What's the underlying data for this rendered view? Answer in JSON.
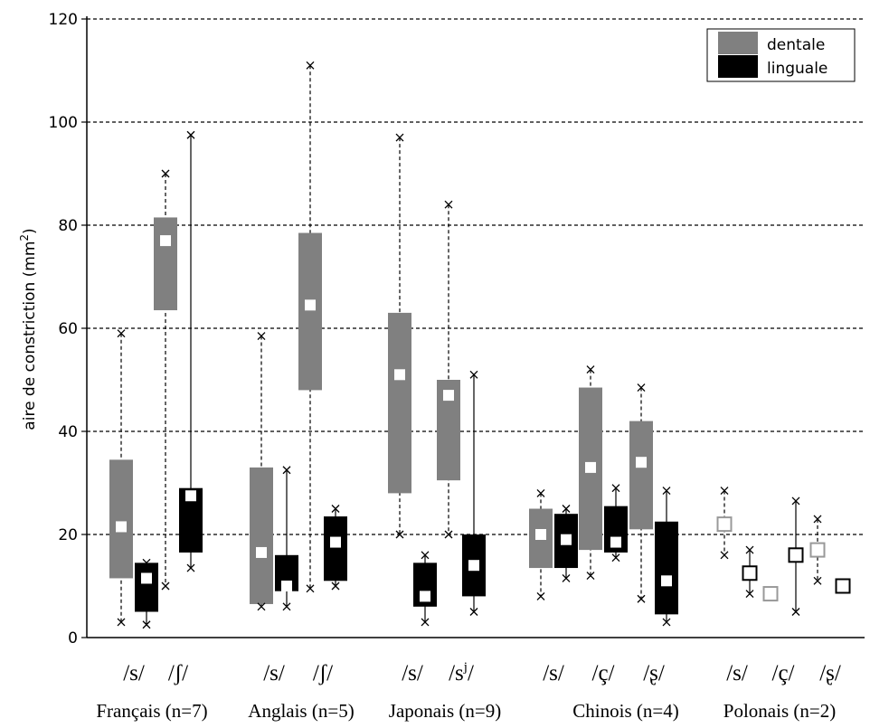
{
  "chart_data": {
    "type": "boxplot",
    "ylabel": "aire de constriction (mm",
    "ylabel_sup": "2",
    "ylabel_close": ")",
    "ylim": [
      0,
      120
    ],
    "yticks": [
      "0",
      "20",
      "40",
      "60",
      "80",
      "100",
      "120"
    ],
    "grid": "horizontal dashed",
    "legend_position": "top-right",
    "legend": [
      {
        "label": "dentale",
        "color": "#808080"
      },
      {
        "label": "linguale",
        "color": "#000000"
      }
    ],
    "groups": [
      {
        "label": "Français (n=7)",
        "phonemes": [
          {
            "label": "/s/",
            "dentale": {
              "min": 3,
              "q1": 11.5,
              "mean": 21.5,
              "q3": 34.5,
              "max": 59
            },
            "linguale": {
              "min": 2.5,
              "q1": 5,
              "mean": 11.5,
              "q3": 14.5,
              "max": 14.5
            }
          },
          {
            "label": "/ʃ/",
            "dentale": {
              "min": 10,
              "q1": 63.5,
              "mean": 77,
              "q3": 81.5,
              "max": 90
            },
            "linguale": {
              "min": 13.5,
              "q1": 16.5,
              "mean": 27.5,
              "q3": 29,
              "max": 97.5
            }
          }
        ]
      },
      {
        "label": "Anglais (n=5)",
        "phonemes": [
          {
            "label": "/s/",
            "dentale": {
              "min": 6,
              "q1": 6.5,
              "mean": 16.5,
              "q3": 33,
              "max": 58.5
            },
            "linguale": {
              "min": 6,
              "q1": 9,
              "mean": 10,
              "q3": 16,
              "max": 32.5
            }
          },
          {
            "label": "/ʃ/",
            "dentale": {
              "min": 9.5,
              "q1": 48,
              "mean": 64.5,
              "q3": 78.5,
              "max": 111
            },
            "linguale": {
              "min": 10,
              "q1": 11,
              "mean": 18.5,
              "q3": 23.5,
              "max": 25
            }
          }
        ]
      },
      {
        "label": "Japonais (n=9)",
        "phonemes": [
          {
            "label": "/s/",
            "label_sup": "",
            "dentale": {
              "min": 20,
              "q1": 28,
              "mean": 51,
              "q3": 63,
              "max": 97
            },
            "linguale": {
              "min": 3,
              "q1": 6,
              "mean": 8,
              "q3": 14.5,
              "max": 16
            }
          },
          {
            "label": "/s",
            "label_sup": "j",
            "label_end": "/",
            "dentale": {
              "min": 20,
              "q1": 30.5,
              "mean": 47,
              "q3": 50,
              "max": 84
            },
            "linguale": {
              "min": 5,
              "q1": 8,
              "mean": 14,
              "q3": 20,
              "max": 51
            }
          }
        ]
      },
      {
        "label": "Chinois (n=4)",
        "phonemes": [
          {
            "label": "/s/",
            "dentale": {
              "min": 8,
              "q1": 13.5,
              "mean": 20,
              "q3": 25,
              "max": 28
            },
            "linguale": {
              "min": 11.5,
              "q1": 13.5,
              "mean": 19,
              "q3": 24,
              "max": 25
            }
          },
          {
            "label": "/ç/",
            "dentale": {
              "min": 12,
              "q1": 17,
              "mean": 33,
              "q3": 48.5,
              "max": 52
            },
            "linguale": {
              "min": 15.5,
              "q1": 16.5,
              "mean": 18.5,
              "q3": 25.5,
              "max": 29
            }
          },
          {
            "label": "/ʂ/",
            "dentale": {
              "min": 7.5,
              "q1": 21,
              "mean": 34,
              "q3": 42,
              "max": 48.5
            },
            "linguale": {
              "min": 3,
              "q1": 4.5,
              "mean": 11,
              "q3": 22.5,
              "max": 28.5
            }
          }
        ]
      },
      {
        "label": "Polonais (n=2)",
        "phonemes": [
          {
            "label": "/s/",
            "dentale": {
              "min": 16,
              "mean": 22,
              "max": 28.5
            },
            "linguale": {
              "min": 8.5,
              "mean": 12.5,
              "max": 17
            }
          },
          {
            "label": "/ç/",
            "dentale": {
              "mean": 8.5
            },
            "linguale": {
              "min": 5,
              "mean": 16,
              "max": 26.5
            }
          },
          {
            "label": "/ʂ/",
            "dentale": {
              "min": 11,
              "mean": 17,
              "max": 23
            },
            "linguale": {
              "mean": 10
            }
          }
        ]
      }
    ]
  }
}
